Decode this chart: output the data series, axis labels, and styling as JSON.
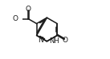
{
  "bg_color": "#ffffff",
  "line_color": "#1a1a1a",
  "line_width": 1.1,
  "figsize": [
    1.37,
    0.74
  ],
  "dpi": 100,
  "xlim": [
    -0.15,
    1.05
  ],
  "ylim": [
    -0.05,
    1.05
  ]
}
